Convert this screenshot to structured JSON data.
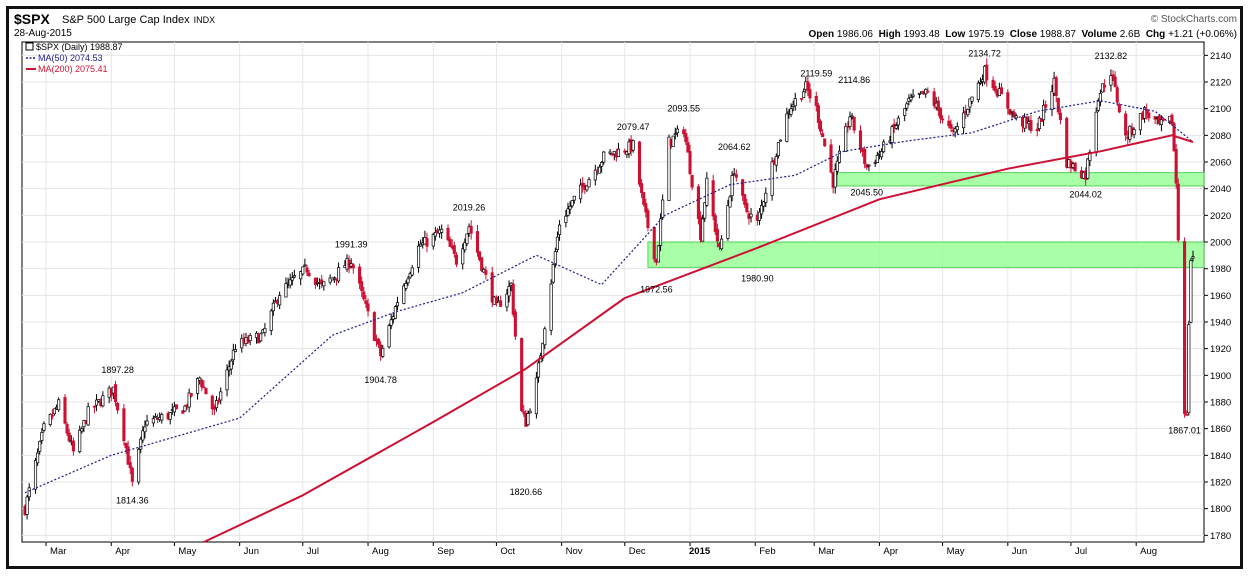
{
  "header": {
    "symbol": "$SPX",
    "name": "S&P 500 Large Cap Index",
    "exchange": "INDX",
    "date": "28-Aug-2015",
    "brand": "© StockCharts.com",
    "quote": {
      "open_label": "Open",
      "open": "1986.06",
      "high_label": "High",
      "high": "1993.48",
      "low_label": "Low",
      "low": "1975.19",
      "close_label": "Close",
      "close": "1988.87",
      "volume_label": "Volume",
      "volume": "2.6B",
      "chg_label": "Chg",
      "chg": "+1.21 (+0.06%)"
    }
  },
  "legend": [
    {
      "label": "$SPX (Daily) 1988.87",
      "color": "#000000"
    },
    {
      "label": "MA(50) 2074.53",
      "color": "#1a1a8c"
    },
    {
      "label": "MA(200) 2075.41",
      "color": "#cc1133"
    }
  ],
  "chart_data": {
    "type": "line",
    "title": "$SPX (Daily) 1988.87",
    "ylim": [
      1775,
      2150
    ],
    "yticks": [
      1780,
      1800,
      1820,
      1840,
      1860,
      1880,
      1900,
      1920,
      1940,
      1960,
      1980,
      2000,
      2020,
      2040,
      2060,
      2080,
      2100,
      2120,
      2140
    ],
    "xticks": [
      "Mar",
      "Apr",
      "May",
      "Jun",
      "Jul",
      "Aug",
      "Sep",
      "Oct",
      "Nov",
      "Dec",
      "2015",
      "Feb",
      "Mar",
      "Apr",
      "May",
      "Jun",
      "Jul",
      "Aug"
    ],
    "date_range": [
      "2014-02-19",
      "2015-08-28"
    ],
    "colors": {
      "up": "#000000",
      "down": "#cc1133",
      "ma50": "#1a1a8c",
      "ma200": "#cc1133",
      "zone": "#99ff99"
    },
    "series": [
      {
        "name": "$SPX",
        "x": [
          "2014-02-19",
          "2014-02-28",
          "2014-03-07",
          "2014-03-14",
          "2014-03-21",
          "2014-04-02",
          "2014-04-07",
          "2014-04-11",
          "2014-04-17",
          "2014-04-28",
          "2014-05-06",
          "2014-05-13",
          "2014-05-20",
          "2014-05-30",
          "2014-06-12",
          "2014-06-20",
          "2014-07-03",
          "2014-07-10",
          "2014-07-24",
          "2014-08-07",
          "2014-08-15",
          "2014-08-25",
          "2014-09-05",
          "2014-09-12",
          "2014-09-18",
          "2014-09-25",
          "2014-10-01",
          "2014-10-08",
          "2014-10-13",
          "2014-10-15",
          "2014-10-20",
          "2014-10-31",
          "2014-11-07",
          "2014-11-21",
          "2014-11-28",
          "2014-12-05",
          "2014-12-10",
          "2014-12-16",
          "2014-12-22",
          "2014-12-29",
          "2015-01-06",
          "2015-01-09",
          "2015-01-15",
          "2015-01-22",
          "2015-01-27",
          "2015-02-02",
          "2015-02-09",
          "2015-02-17",
          "2015-02-25",
          "2015-03-02",
          "2015-03-10",
          "2015-03-18",
          "2015-03-26",
          "2015-04-02",
          "2015-04-15",
          "2015-04-24",
          "2015-05-06",
          "2015-05-21",
          "2015-06-05",
          "2015-06-15",
          "2015-06-23",
          "2015-06-29",
          "2015-07-08",
          "2015-07-14",
          "2015-07-20",
          "2015-07-27",
          "2015-08-05",
          "2015-08-12",
          "2015-08-18",
          "2015-08-20",
          "2015-08-24",
          "2015-08-25",
          "2015-08-26",
          "2015-08-27",
          "2015-08-28"
        ],
        "values": [
          1800,
          1860,
          1878,
          1842,
          1872,
          1890,
          1855,
          1818,
          1864,
          1870,
          1876,
          1898,
          1872,
          1922,
          1930,
          1962,
          1980,
          1966,
          1986,
          1915,
          1956,
          1996,
          2008,
          1986,
          2012,
          1978,
          1950,
          1968,
          1872,
          1865,
          1895,
          2014,
          2032,
          2064,
          2068,
          2072,
          2025,
          1985,
          2075,
          2085,
          2006,
          2044,
          1993,
          2055,
          2025,
          2014,
          2058,
          2100,
          2116,
          2100,
          2045,
          2095,
          2056,
          2068,
          2105,
          2112,
          2080,
          2128,
          2092,
          2085,
          2120,
          2060,
          2050,
          2110,
          2128,
          2078,
          2098,
          2087,
          2091,
          2045,
          1875,
          1868,
          1940,
          1987,
          1989
        ]
      },
      {
        "name": "MA(50)",
        "x": [
          "2014-02-19",
          "2014-04-01",
          "2014-06-01",
          "2014-07-15",
          "2014-08-15",
          "2014-09-15",
          "2014-10-20",
          "2014-11-20",
          "2014-12-20",
          "2015-01-20",
          "2015-02-20",
          "2015-03-15",
          "2015-04-15",
          "2015-05-15",
          "2015-06-15",
          "2015-07-15",
          "2015-08-10",
          "2015-08-28"
        ],
        "values": [
          1812,
          1840,
          1868,
          1930,
          1948,
          1962,
          1990,
          1968,
          2020,
          2043,
          2050,
          2068,
          2076,
          2082,
          2098,
          2106,
          2098,
          2075
        ]
      },
      {
        "name": "MA(200)",
        "x": [
          "2014-05-15",
          "2014-07-01",
          "2014-09-01",
          "2014-10-15",
          "2014-12-01",
          "2015-02-01",
          "2015-04-01",
          "2015-06-01",
          "2015-07-15",
          "2015-08-18",
          "2015-08-28"
        ],
        "values": [
          1775,
          1810,
          1865,
          1905,
          1958,
          1995,
          2032,
          2055,
          2068,
          2080,
          2075
        ]
      }
    ],
    "zones": [
      {
        "low": 2042,
        "high": 2052,
        "from": "2015-03-12",
        "to": "2015-08-28"
      },
      {
        "low": 1981,
        "high": 2000,
        "from": "2014-12-12",
        "to": "2015-08-28"
      }
    ],
    "annotations": [
      {
        "x": "2014-04-04",
        "y": 1897.28,
        "label": "1897.28",
        "pos": "above"
      },
      {
        "x": "2014-04-11",
        "y": 1814.36,
        "label": "1814.36",
        "pos": "below"
      },
      {
        "x": "2014-07-24",
        "y": 1991.39,
        "label": "1991.39",
        "pos": "above"
      },
      {
        "x": "2014-08-07",
        "y": 1904.78,
        "label": "1904.78",
        "pos": "below"
      },
      {
        "x": "2014-09-18",
        "y": 2019.26,
        "label": "2019.26",
        "pos": "above"
      },
      {
        "x": "2014-10-15",
        "y": 1820.66,
        "label": "1820.66",
        "pos": "below"
      },
      {
        "x": "2014-12-05",
        "y": 2079.47,
        "label": "2079.47",
        "pos": "above"
      },
      {
        "x": "2014-12-16",
        "y": 1972.56,
        "label": "1972.56",
        "pos": "below"
      },
      {
        "x": "2014-12-29",
        "y": 2093.55,
        "label": "2093.55",
        "pos": "above"
      },
      {
        "x": "2015-01-22",
        "y": 2064.62,
        "label": "2064.62",
        "pos": "above"
      },
      {
        "x": "2015-02-02",
        "y": 1980.9,
        "label": "1980.90",
        "pos": "below"
      },
      {
        "x": "2015-03-02",
        "y": 2119.59,
        "label": "2119.59",
        "pos": "above"
      },
      {
        "x": "2015-03-20",
        "y": 2114.86,
        "label": "2114.86",
        "pos": "above"
      },
      {
        "x": "2015-03-26",
        "y": 2045.5,
        "label": "2045.50",
        "pos": "below"
      },
      {
        "x": "2015-05-21",
        "y": 2134.72,
        "label": "2134.72",
        "pos": "above"
      },
      {
        "x": "2015-07-08",
        "y": 2044.02,
        "label": "2044.02",
        "pos": "below"
      },
      {
        "x": "2015-07-20",
        "y": 2132.82,
        "label": "2132.82",
        "pos": "above"
      },
      {
        "x": "2015-08-24",
        "y": 1867.01,
        "label": "1867.01",
        "pos": "below"
      }
    ]
  }
}
